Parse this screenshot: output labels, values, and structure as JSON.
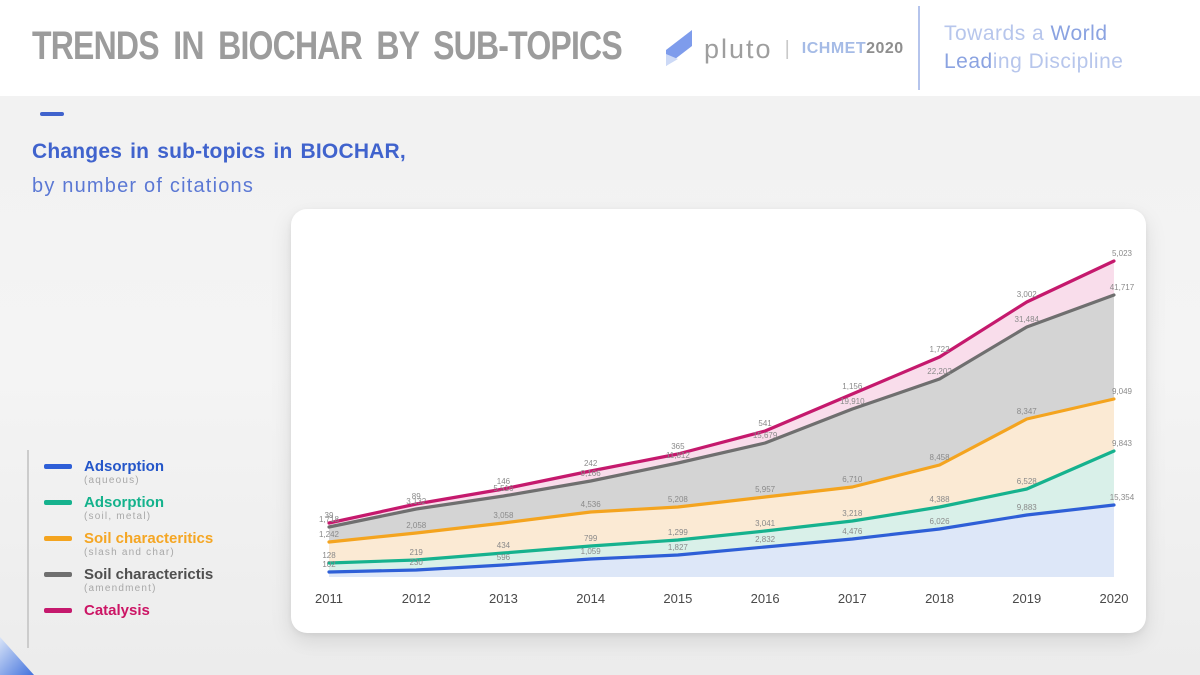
{
  "header": {
    "title": "TRENDS IN BIOCHAR BY SUB-TOPICS",
    "pluto_logo_text": "pluto",
    "logo_separator": "|",
    "conference_name": "ICHMET",
    "conference_year": "2020",
    "tagline_line1_light": "Towards a ",
    "tagline_line1_accent": "World",
    "tagline_line2_accent": "Lead",
    "tagline_line2_light": "ing Discipline"
  },
  "subtitle": {
    "line1": "Changes in sub-topics in BIOCHAR,",
    "line2": "by number of citations"
  },
  "legend": {
    "items": [
      {
        "label": "Adsorption",
        "sublabel": "(aqueous)",
        "color": "#2e5fd7",
        "text_color": "#2456c9"
      },
      {
        "label": "Adsorption",
        "sublabel": "(soil, metal)",
        "color": "#16b28e",
        "text_color": "#14b28c"
      },
      {
        "label": "Soil characteritics",
        "sublabel": "(slash and char)",
        "color": "#f4a41f",
        "text_color": "#f5a623"
      },
      {
        "label": "Soil characterictis",
        "sublabel": "(amendment)",
        "color": "#6f6f6f",
        "text_color": "#4f4f4f"
      },
      {
        "label": "Catalysis",
        "sublabel": "",
        "color": "#c5196d",
        "text_color": "#cc1565"
      }
    ]
  },
  "chart_data": {
    "type": "area",
    "title": "Changes in sub-topics in BIOCHAR, by number of citations",
    "x": [
      2011,
      2012,
      2013,
      2014,
      2015,
      2016,
      2017,
      2018,
      2019,
      2020
    ],
    "grid": false,
    "legend_position": "left",
    "series": [
      {
        "name": "Adsorption (aqueous)",
        "color": "#2e5fd7",
        "fill": "#dde7f8",
        "values": [
          102,
          230,
          596,
          1059,
          1827,
          2832,
          4476,
          6026,
          9883,
          15354
        ]
      },
      {
        "name": "Adsorption (soil, metal)",
        "color": "#16b28e",
        "fill": "#d9f0e9",
        "values": [
          128,
          219,
          434,
          799,
          1299,
          3041,
          3218,
          4388,
          6528,
          9843
        ]
      },
      {
        "name": "Soil characteritics (slash and char)",
        "color": "#f4a41f",
        "fill": "#fbead4",
        "values": [
          1242,
          2058,
          3058,
          4536,
          5208,
          5957,
          6710,
          8458,
          8347,
          9049
        ]
      },
      {
        "name": "Soil characterictis (amendment)",
        "color": "#6f6f6f",
        "fill": "#d4d4d4",
        "values": [
          1718,
          3132,
          5516,
          9166,
          11812,
          15679,
          19910,
          22202,
          31484,
          41717
        ]
      },
      {
        "name": "Catalysis",
        "color": "#c5196d",
        "fill": "#f9ddeb",
        "values": [
          39,
          89,
          146,
          242,
          365,
          541,
          1156,
          1722,
          3002,
          5023
        ]
      }
    ]
  }
}
